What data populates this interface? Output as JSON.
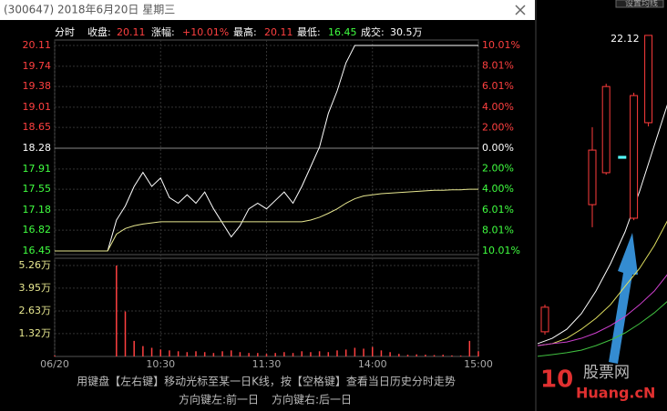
{
  "header": {
    "title": "(300647) 2018年6月20日 星期三"
  },
  "info": {
    "mode": "分时",
    "close_label": "收盘:",
    "close": "20.11",
    "change_label": "涨幅:",
    "change": "+10.01%",
    "high_label": "最高:",
    "high": "20.11",
    "low_label": "最低:",
    "low": "16.45",
    "volume_label": "成交:",
    "volume": "30.5万"
  },
  "chart_data": [
    {
      "type": "line",
      "x": [
        0,
        5,
        10,
        15,
        20,
        25,
        30,
        35,
        40,
        45,
        50,
        55,
        60,
        65,
        70,
        75,
        80,
        85,
        90,
        95,
        100,
        105,
        110,
        115,
        120,
        125,
        130,
        135,
        140,
        145,
        150,
        155,
        160,
        165,
        170,
        175,
        180,
        185,
        190,
        195,
        200,
        205,
        210,
        215,
        220,
        225,
        230,
        235,
        240
      ],
      "xlim": [
        0,
        240
      ],
      "xticks": [
        {
          "value": 0,
          "label": "06/20"
        },
        {
          "value": 60,
          "label": "10:30"
        },
        {
          "value": 120,
          "label": "11:30"
        },
        {
          "value": 180,
          "label": "14:00"
        },
        {
          "value": 240,
          "label": "15:00"
        }
      ],
      "ylim": [
        16.45,
        20.11
      ],
      "yticks": [
        20.11,
        19.74,
        19.38,
        19.01,
        18.65,
        18.28,
        17.91,
        17.55,
        17.18,
        16.82,
        16.45
      ],
      "y2lim": [
        -10.01,
        10.01
      ],
      "y2ticks": [
        {
          "value": 10.01,
          "label": "10.01%"
        },
        {
          "value": 8.01,
          "label": "8.01%"
        },
        {
          "value": 6.01,
          "label": "6.01%"
        },
        {
          "value": 4.0,
          "label": "4.00%"
        },
        {
          "value": 2.0,
          "label": "2.00%"
        },
        {
          "value": 0,
          "label": "0.00%"
        },
        {
          "value": -2.0,
          "label": "2.00%"
        },
        {
          "value": -4.0,
          "label": "4.00%"
        },
        {
          "value": -6.01,
          "label": "6.01%"
        },
        {
          "value": -8.01,
          "label": "8.01%"
        },
        {
          "value": -10.01,
          "label": "10.01%"
        }
      ],
      "series": [
        {
          "color": "#ffffff",
          "values": [
            16.45,
            16.45,
            16.45,
            16.45,
            16.45,
            16.45,
            16.45,
            17.0,
            17.25,
            17.6,
            17.85,
            17.6,
            17.75,
            17.4,
            17.3,
            17.45,
            17.3,
            17.5,
            17.2,
            16.95,
            16.7,
            16.9,
            17.2,
            17.3,
            17.2,
            17.35,
            17.5,
            17.3,
            17.6,
            17.95,
            18.3,
            18.9,
            19.3,
            19.8,
            20.11,
            20.11,
            20.11,
            20.11,
            20.11,
            20.11,
            20.11,
            20.11,
            20.11,
            20.11,
            20.11,
            20.11,
            20.11,
            20.11,
            20.11
          ]
        },
        {
          "color": "#e8e890",
          "values": [
            16.45,
            16.45,
            16.45,
            16.45,
            16.45,
            16.45,
            16.45,
            16.75,
            16.85,
            16.9,
            16.93,
            16.95,
            16.97,
            16.97,
            16.97,
            16.97,
            16.97,
            16.97,
            16.97,
            16.97,
            16.97,
            16.97,
            16.97,
            16.97,
            16.97,
            16.97,
            16.97,
            16.97,
            16.97,
            17.0,
            17.05,
            17.12,
            17.2,
            17.3,
            17.38,
            17.43,
            17.45,
            17.47,
            17.48,
            17.49,
            17.5,
            17.51,
            17.52,
            17.53,
            17.53,
            17.54,
            17.54,
            17.55,
            17.55
          ]
        }
      ],
      "volume": {
        "color": "#ff4040",
        "ylim": [
          0,
          5.26
        ],
        "yticks": [
          {
            "value": 5.26,
            "label": "5.26万"
          },
          {
            "value": 3.95,
            "label": "3.95万"
          },
          {
            "value": 2.63,
            "label": "2.63万"
          },
          {
            "value": 1.32,
            "label": "1.32万"
          }
        ],
        "values": [
          0.05,
          0,
          0,
          0,
          0,
          0,
          0,
          5.26,
          2.6,
          0.9,
          0.6,
          0.5,
          0.4,
          0.35,
          0.3,
          0.25,
          0.3,
          0.25,
          0.2,
          0.3,
          0.35,
          0.25,
          0.2,
          0.2,
          0.15,
          0.2,
          0.25,
          0.2,
          0.3,
          0.25,
          0.3,
          0.25,
          0.35,
          0.4,
          0.5,
          0.45,
          0.55,
          0.35,
          0.25,
          0.15,
          0.1,
          0.12,
          0.1,
          0.08,
          0.1,
          0.06,
          0.05,
          0.9,
          0.3
        ]
      }
    },
    {
      "type": "candlestick",
      "xlim": [
        0,
        9
      ],
      "ylim": [
        10.5,
        22.6
      ],
      "up_color": "#ff3c3c",
      "down_color": "#54fcfc",
      "candles": [
        {
          "x": 0.5,
          "open": 11.63,
          "close": 12.5,
          "high": 12.59,
          "low": 11.53
        },
        {
          "x": 3.75,
          "open": 16.13,
          "close": 18.06,
          "high": 18.87,
          "low": 15.33
        },
        {
          "x": 4.7,
          "open": 17.26,
          "close": 20.31,
          "high": 20.41,
          "low": 17.19
        },
        {
          "x": 5.8,
          "open": 17.84,
          "close": 17.77,
          "high": 17.84,
          "low": 17.77
        },
        {
          "x": 6.6,
          "open": 15.65,
          "close": 19.99,
          "high": 20.09,
          "low": 15.58
        },
        {
          "x": 7.6,
          "open": 19.03,
          "close": 22.12,
          "high": 22.12,
          "low": 18.9
        }
      ],
      "series": [
        {
          "color": "#ffffff",
          "values": [
            11.21,
            11.4,
            11.72,
            12.27,
            13.07,
            14.04,
            15.17,
            16.61,
            18.22,
            19.83
          ]
        },
        {
          "color": "#e0e060",
          "values": [
            11.14,
            11.21,
            11.4,
            11.72,
            12.11,
            12.59,
            13.24,
            13.88,
            14.68,
            15.65
          ]
        },
        {
          "color": "#d040d0",
          "values": [
            11.14,
            11.21,
            11.27,
            11.4,
            11.59,
            11.85,
            12.17,
            12.59,
            13.07,
            13.72
          ]
        },
        {
          "color": "#40c040",
          "values": [
            10.76,
            10.82,
            10.89,
            10.98,
            11.14,
            11.34,
            11.59,
            11.92,
            12.3,
            12.75
          ]
        }
      ],
      "button": "设置均线"
    }
  ],
  "footer": {
    "hint": "用键盘【左右键】移动光标至某一日K线，按【空格键】查看当日历史分时走势",
    "prev": "方向键左:前一日",
    "next": "方向键右:后一日"
  },
  "watermark": {
    "logo": "10",
    "name": "股票网",
    "site": "Huang.cN"
  }
}
